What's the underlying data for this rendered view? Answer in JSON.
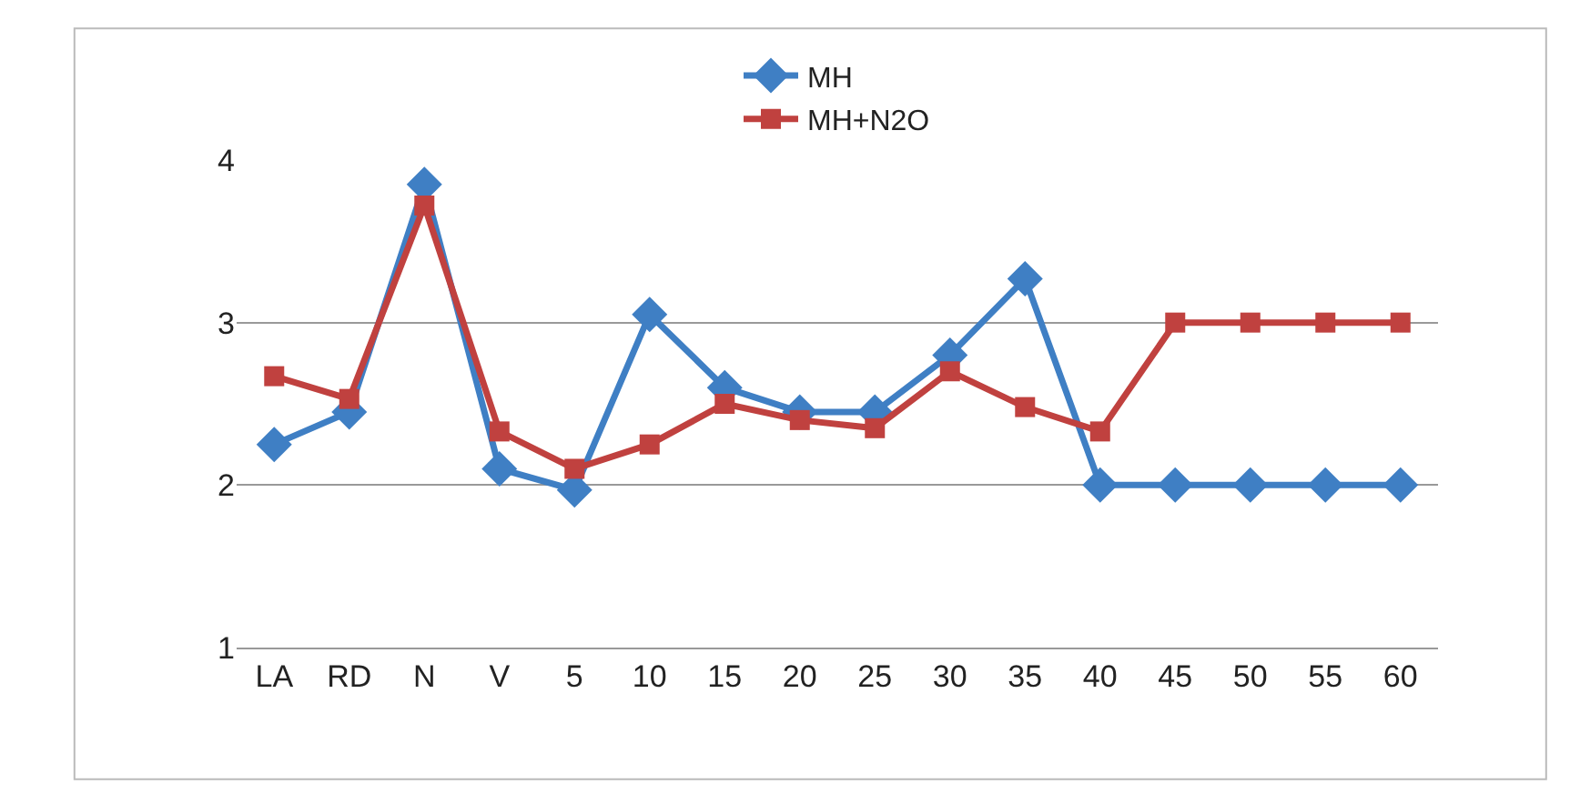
{
  "chart_data": {
    "type": "line",
    "categories": [
      "LA",
      "RD",
      "N",
      "V",
      "5",
      "10",
      "15",
      "20",
      "25",
      "30",
      "35",
      "40",
      "45",
      "50",
      "55",
      "60"
    ],
    "series": [
      {
        "name": "MH",
        "color": "#3f7fc4",
        "marker": "diamond",
        "values": [
          2.25,
          2.45,
          3.85,
          2.1,
          1.97,
          3.05,
          2.6,
          2.45,
          2.45,
          2.8,
          3.27,
          2,
          2,
          2,
          2,
          2
        ]
      },
      {
        "name": "MH+N2O",
        "color": "#c0413f",
        "marker": "square",
        "values": [
          2.67,
          2.53,
          3.72,
          2.33,
          2.1,
          2.25,
          2.5,
          2.4,
          2.35,
          2.7,
          2.48,
          2.33,
          3,
          3,
          3,
          3
        ]
      }
    ],
    "ylim": [
      1,
      4
    ],
    "yticks": [
      1,
      2,
      3,
      4
    ],
    "grid": "y",
    "legend": "top",
    "line_style": "solid"
  }
}
